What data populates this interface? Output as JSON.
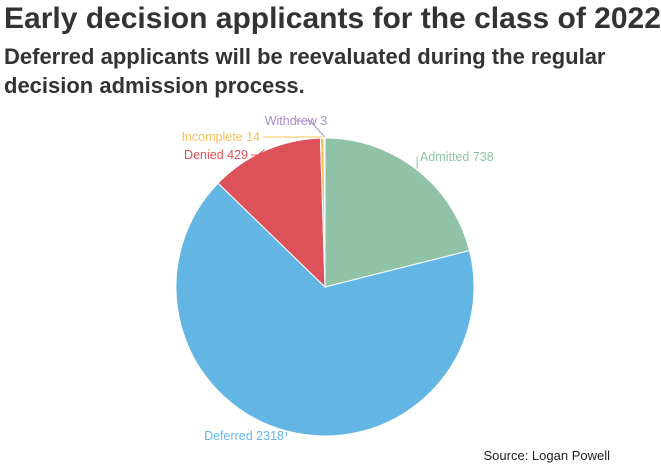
{
  "title": "Early decision applicants for the class of 2022",
  "subtitle": "Deferred applicants will be reevaluated during the regular decision admission process.",
  "source": "Source: Logan Powell",
  "chart_data": {
    "type": "pie",
    "slices": [
      {
        "label": "Admitted",
        "value": 738,
        "color": "#8fc2a6"
      },
      {
        "label": "Deferred",
        "value": 2318,
        "color": "#63b6e3"
      },
      {
        "label": "Denied",
        "value": 429,
        "color": "#dd5159"
      },
      {
        "label": "Incomplete",
        "value": 14,
        "color": "#f4c35a"
      },
      {
        "label": "Withdrew",
        "value": 3,
        "color": "#a98bc8"
      }
    ]
  }
}
